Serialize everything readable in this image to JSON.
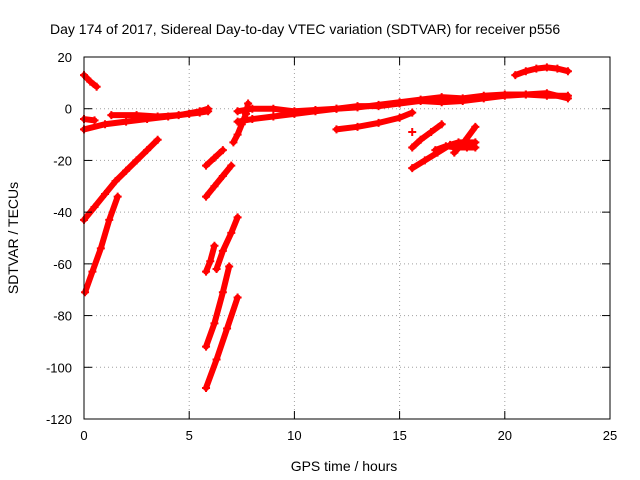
{
  "chart_data": {
    "type": "scatter",
    "title": "Day 174 of 2017, Sidereal Day-to-day VTEC variation (SDTVAR) for receiver p556",
    "xlabel": "GPS time / hours",
    "ylabel": "SDTVAR / TECUs",
    "xlim": [
      0,
      25
    ],
    "ylim": [
      -120,
      20
    ],
    "xticks": [
      0,
      5,
      10,
      15,
      20,
      25
    ],
    "yticks": [
      -120,
      -100,
      -80,
      -60,
      -40,
      -20,
      0,
      20
    ],
    "grid": true,
    "marker": "+",
    "color": "#ff0000",
    "series": [
      {
        "points": [
          [
            0,
            -8
          ],
          [
            1,
            -6
          ],
          [
            2,
            -5
          ],
          [
            3,
            -4
          ],
          [
            4,
            -3
          ],
          [
            5,
            -2
          ],
          [
            5.5,
            -1.5
          ],
          [
            5.9,
            -1
          ]
        ]
      },
      {
        "points": [
          [
            0,
            -4
          ],
          [
            0.5,
            -4.5
          ]
        ]
      },
      {
        "points": [
          [
            1.3,
            -2.5
          ],
          [
            2.5,
            -2.5
          ],
          [
            3.5,
            -3
          ],
          [
            4.5,
            -2.5
          ],
          [
            5.5,
            -1
          ],
          [
            5.9,
            0
          ]
        ]
      },
      {
        "points": [
          [
            0,
            13
          ],
          [
            0.3,
            10.5
          ],
          [
            0.6,
            8.5
          ]
        ]
      },
      {
        "points": [
          [
            0,
            -43
          ],
          [
            0.5,
            -38
          ],
          [
            1,
            -33
          ],
          [
            1.5,
            -28
          ],
          [
            2,
            -24
          ],
          [
            2.5,
            -20
          ],
          [
            3,
            -16
          ],
          [
            3.5,
            -12
          ]
        ]
      },
      {
        "points": [
          [
            0.05,
            -71
          ],
          [
            0.4,
            -63
          ],
          [
            0.8,
            -54
          ],
          [
            1.2,
            -43
          ],
          [
            1.6,
            -34
          ]
        ]
      },
      {
        "points": [
          [
            5.8,
            -22
          ],
          [
            6.2,
            -19
          ],
          [
            6.6,
            -16
          ]
        ]
      },
      {
        "points": [
          [
            5.8,
            -34
          ],
          [
            6.2,
            -30
          ],
          [
            6.6,
            -26
          ],
          [
            7,
            -22
          ]
        ]
      },
      {
        "points": [
          [
            5.8,
            -63
          ],
          [
            6.0,
            -59
          ],
          [
            6.2,
            -53
          ]
        ]
      },
      {
        "points": [
          [
            6.3,
            -62
          ],
          [
            6.6,
            -55
          ],
          [
            7,
            -48
          ],
          [
            7.3,
            -42
          ]
        ]
      },
      {
        "points": [
          [
            5.8,
            -92
          ],
          [
            6.2,
            -83
          ],
          [
            6.6,
            -71
          ],
          [
            6.9,
            -61
          ]
        ]
      },
      {
        "points": [
          [
            5.8,
            -108
          ],
          [
            6.3,
            -97
          ],
          [
            6.8,
            -85
          ],
          [
            7.3,
            -73
          ]
        ]
      },
      {
        "points": [
          [
            7.1,
            -13
          ],
          [
            7.3,
            -10
          ],
          [
            7.5,
            -6
          ],
          [
            7.7,
            -2
          ],
          [
            7.8,
            2
          ]
        ]
      },
      {
        "points": [
          [
            7.3,
            -5
          ],
          [
            8,
            -4
          ],
          [
            9,
            -3
          ],
          [
            10,
            -2
          ],
          [
            11,
            -1
          ],
          [
            12,
            0
          ],
          [
            13,
            0.5
          ],
          [
            14,
            1.5
          ],
          [
            15,
            2.5
          ],
          [
            16,
            3.5
          ],
          [
            17,
            4.5
          ],
          [
            18,
            4
          ],
          [
            19,
            5
          ],
          [
            20,
            5.5
          ],
          [
            21,
            5.5
          ],
          [
            22,
            5
          ],
          [
            23,
            5
          ]
        ]
      },
      {
        "points": [
          [
            7.3,
            -1
          ],
          [
            8,
            0
          ],
          [
            9,
            0
          ],
          [
            10,
            -1
          ],
          [
            11,
            -0.5
          ],
          [
            12,
            0
          ],
          [
            13,
            1
          ],
          [
            14,
            1
          ],
          [
            15,
            2
          ],
          [
            16,
            3
          ],
          [
            17,
            2.5
          ],
          [
            18,
            3
          ],
          [
            19,
            4
          ],
          [
            20,
            5
          ],
          [
            21,
            5.5
          ],
          [
            22,
            6
          ],
          [
            23,
            4
          ]
        ]
      },
      {
        "points": [
          [
            12,
            -8
          ],
          [
            13,
            -7
          ],
          [
            14,
            -5.5
          ],
          [
            15,
            -3.5
          ],
          [
            15.6,
            -1.5
          ]
        ]
      },
      {
        "points": [
          [
            15.6,
            -9
          ]
        ]
      },
      {
        "points": [
          [
            15.6,
            -15
          ],
          [
            16,
            -12
          ],
          [
            16.5,
            -9
          ],
          [
            17,
            -6
          ]
        ]
      },
      {
        "points": [
          [
            15.6,
            -23
          ],
          [
            16.2,
            -20
          ],
          [
            16.8,
            -17
          ],
          [
            17.4,
            -14
          ],
          [
            17.8,
            -13
          ],
          [
            18.2,
            -13
          ],
          [
            18.6,
            -13
          ]
        ]
      },
      {
        "points": [
          [
            16.7,
            -16
          ],
          [
            17.2,
            -14.5
          ],
          [
            17.7,
            -15
          ],
          [
            18.2,
            -15
          ],
          [
            18.6,
            -15
          ]
        ]
      },
      {
        "points": [
          [
            17.6,
            -17
          ],
          [
            18.1,
            -12.5
          ],
          [
            18.6,
            -7
          ]
        ]
      },
      {
        "points": [
          [
            20.5,
            13
          ],
          [
            21,
            14.5
          ],
          [
            21.5,
            15.5
          ],
          [
            22,
            16
          ],
          [
            22.5,
            15.5
          ],
          [
            23,
            14.5
          ]
        ]
      }
    ]
  }
}
